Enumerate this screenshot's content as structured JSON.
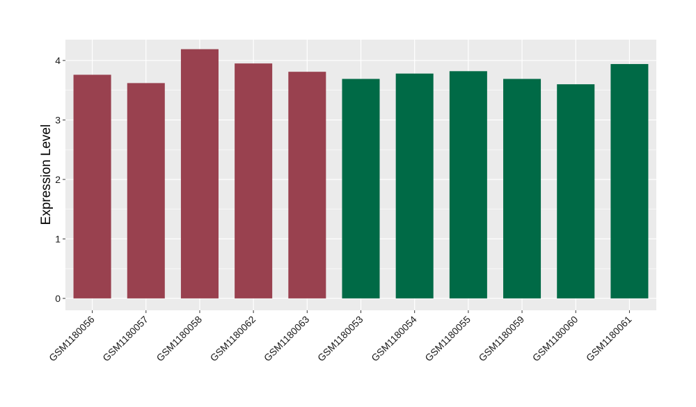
{
  "chart_data": {
    "type": "bar",
    "title": "",
    "xlabel": "",
    "ylabel": "Expression Level",
    "ylim": [
      -0.2,
      4.35
    ],
    "yticks": [
      0,
      1,
      2,
      3,
      4
    ],
    "grid": true,
    "legend": "none",
    "categories": [
      "GSM1180056",
      "GSM1180057",
      "GSM1180058",
      "GSM1180062",
      "GSM1180063",
      "GSM1180053",
      "GSM1180054",
      "GSM1180055",
      "GSM1180059",
      "GSM1180060",
      "GSM1180061"
    ],
    "values": [
      3.76,
      3.62,
      4.19,
      3.95,
      3.81,
      3.69,
      3.78,
      3.82,
      3.69,
      3.6,
      3.94
    ],
    "bar_colors": [
      "#99414f",
      "#99414f",
      "#99414f",
      "#99414f",
      "#99414f",
      "#006a46",
      "#006a46",
      "#006a46",
      "#006a46",
      "#006a46",
      "#006a46"
    ],
    "panel_background": "#ebebeb",
    "grid_color": "#ffffff"
  }
}
